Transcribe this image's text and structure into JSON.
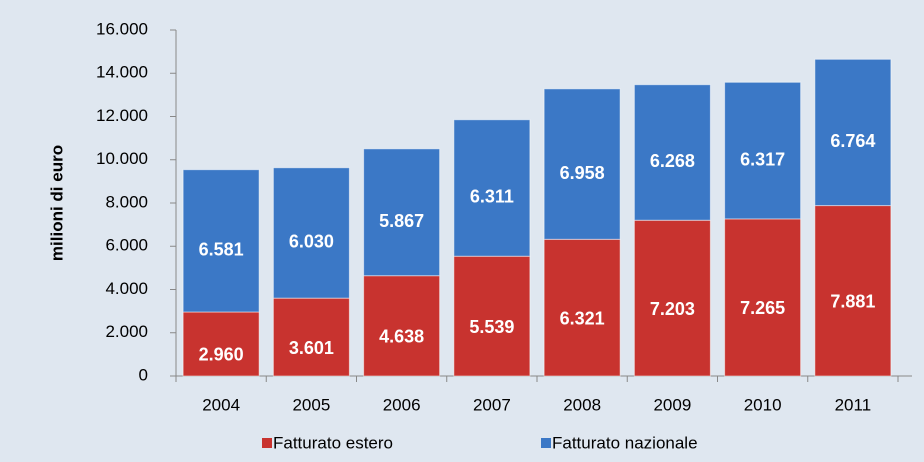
{
  "chart_data": {
    "type": "stacked_bar",
    "y_label": "milioni di euro",
    "categories": [
      "2004",
      "2005",
      "2006",
      "2007",
      "2008",
      "2009",
      "2010",
      "2011"
    ],
    "series": [
      {
        "name": "Fatturato estero",
        "color": "#c8332f",
        "values": [
          2960,
          3601,
          4638,
          5539,
          6321,
          7203,
          7265,
          7881
        ],
        "value_labels": [
          "2.960",
          "3.601",
          "4.638",
          "5.539",
          "6.321",
          "7.203",
          "7.265",
          "7.881"
        ]
      },
      {
        "name": "Fatturato nazionale",
        "color": "#3b78c6",
        "values": [
          6581,
          6030,
          5867,
          6311,
          6958,
          6268,
          6317,
          6764
        ],
        "value_labels": [
          "6.581",
          "6.030",
          "5.867",
          "6.311",
          "6.958",
          "6.268",
          "6.317",
          "6.764"
        ]
      }
    ],
    "ylim": [
      0,
      16000
    ],
    "yticks": [
      0,
      {
        "value": 2000,
        "label": "2.000"
      },
      {
        "value": 4000,
        "label": "4.000"
      },
      {
        "value": 6000,
        "label": "6.000"
      },
      {
        "value": 8000,
        "label": "8.000"
      },
      {
        "value": 10000,
        "label": "10.000"
      },
      {
        "value": 12000,
        "label": "12.000"
      },
      {
        "value": 14000,
        "label": "14.000"
      },
      {
        "value": 16000,
        "label": "16.000"
      }
    ],
    "legend": "bottom"
  }
}
